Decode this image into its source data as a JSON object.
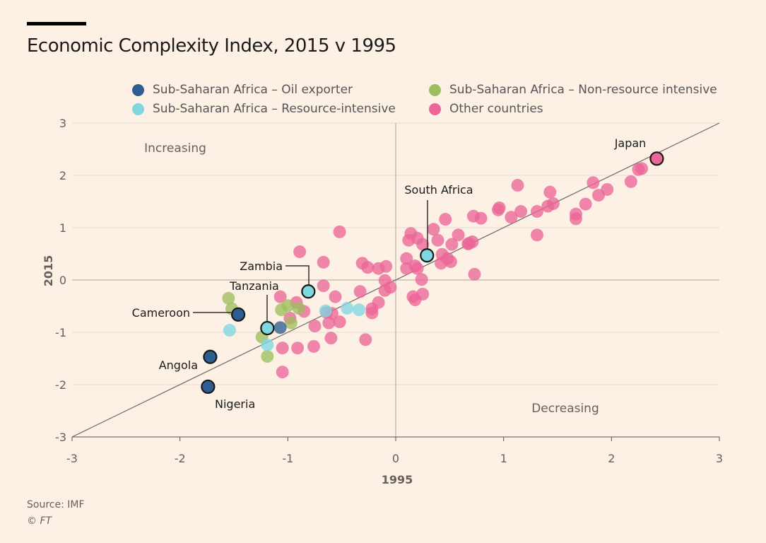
{
  "title": "Economic Complexity Index, 2015 v 1995",
  "source": "Source: IMF",
  "credit": "© FT",
  "colors": {
    "oil": "#2d5e92",
    "resource": "#7fd7e0",
    "nonresource": "#9dbe5e",
    "other": "#ea6797",
    "background": "#fdf1e6"
  },
  "chart_data": {
    "type": "scatter",
    "title": "Economic Complexity Index, 2015 v 1995",
    "xlabel": "1995",
    "ylabel": "2015",
    "xlim": [
      -3,
      3
    ],
    "ylim": [
      -3,
      3
    ],
    "xticks": [
      "-3",
      "-2",
      "-1",
      "0",
      "1",
      "2",
      "3"
    ],
    "yticks": [
      "3",
      "2",
      "1",
      "0",
      "-1",
      "-2",
      "-3"
    ],
    "grid": true,
    "legend_position": "top",
    "annotations": {
      "increasing": "Increasing",
      "decreasing": "Decreasing"
    },
    "series": [
      {
        "key": "oil",
        "name": "Sub-Saharan Africa – Oil exporter",
        "points": [
          [
            -1.07,
            -0.91
          ]
        ]
      },
      {
        "key": "nonresource",
        "name": "Sub-Saharan Africa – Non-resource intensive",
        "points": [
          [
            -1.55,
            -0.35
          ],
          [
            -1.52,
            -0.55
          ],
          [
            -1.24,
            -1.09
          ],
          [
            -1.19,
            -1.46
          ],
          [
            -1.06,
            -0.57
          ],
          [
            -1.0,
            -0.49
          ],
          [
            -0.97,
            -0.82
          ],
          [
            -0.9,
            -0.54
          ]
        ]
      },
      {
        "key": "resource",
        "name": "Sub-Saharan Africa – Resource-intensive",
        "points": [
          [
            -1.54,
            -0.96
          ],
          [
            -1.19,
            -1.24
          ],
          [
            -0.65,
            -0.59
          ],
          [
            -0.45,
            -0.54
          ],
          [
            -0.34,
            -0.57
          ]
        ]
      },
      {
        "key": "other",
        "name": "Other countries",
        "points": [
          [
            2.25,
            2.11
          ],
          [
            2.28,
            2.13
          ],
          [
            2.18,
            1.88
          ],
          [
            1.96,
            1.73
          ],
          [
            1.88,
            1.62
          ],
          [
            1.83,
            1.86
          ],
          [
            1.76,
            1.45
          ],
          [
            1.67,
            1.26
          ],
          [
            1.67,
            1.17
          ],
          [
            1.13,
            1.81
          ],
          [
            1.43,
            1.68
          ],
          [
            1.46,
            1.46
          ],
          [
            1.41,
            1.41
          ],
          [
            1.31,
            0.86
          ],
          [
            1.31,
            1.31
          ],
          [
            1.16,
            1.31
          ],
          [
            1.07,
            1.2
          ],
          [
            0.96,
            1.38
          ],
          [
            0.95,
            1.34
          ],
          [
            0.79,
            1.18
          ],
          [
            0.72,
            1.22
          ],
          [
            0.73,
            0.11
          ],
          [
            0.68,
            0.7
          ],
          [
            0.67,
            0.69
          ],
          [
            0.71,
            0.73
          ],
          [
            0.58,
            0.86
          ],
          [
            0.52,
            0.68
          ],
          [
            0.46,
            1.16
          ],
          [
            0.51,
            0.35
          ],
          [
            0.48,
            0.41
          ],
          [
            0.43,
            0.49
          ],
          [
            0.35,
            0.97
          ],
          [
            0.39,
            0.76
          ],
          [
            0.42,
            0.32
          ],
          [
            0.14,
            0.89
          ],
          [
            0.12,
            0.76
          ],
          [
            0.2,
            0.8
          ],
          [
            0.25,
            0.68
          ],
          [
            0.1,
            0.41
          ],
          [
            0.1,
            0.22
          ],
          [
            0.18,
            0.27
          ],
          [
            0.2,
            0.22
          ],
          [
            0.16,
            -0.32
          ],
          [
            0.18,
            -0.38
          ],
          [
            0.25,
            -0.27
          ],
          [
            0.24,
            0.01
          ],
          [
            -0.09,
            0.26
          ],
          [
            -0.05,
            -0.14
          ],
          [
            -0.1,
            -0.2
          ],
          [
            -0.1,
            -0.01
          ],
          [
            -0.16,
            0.22
          ],
          [
            -0.26,
            0.24
          ],
          [
            -0.31,
            0.32
          ],
          [
            -0.16,
            -0.43
          ],
          [
            -0.22,
            -0.55
          ],
          [
            -0.22,
            -0.63
          ],
          [
            -0.33,
            -0.22
          ],
          [
            -0.28,
            -1.14
          ],
          [
            -0.52,
            0.92
          ],
          [
            -0.56,
            -0.32
          ],
          [
            -0.59,
            -0.64
          ],
          [
            -0.62,
            -0.82
          ],
          [
            -0.6,
            -1.11
          ],
          [
            -0.52,
            -0.8
          ],
          [
            -0.67,
            0.34
          ],
          [
            -0.67,
            -0.11
          ],
          [
            -0.75,
            -0.88
          ],
          [
            -0.85,
            -0.6
          ],
          [
            -0.89,
            0.54
          ],
          [
            -0.92,
            -0.43
          ],
          [
            -0.98,
            -0.73
          ],
          [
            -1.07,
            -0.32
          ],
          [
            -0.91,
            -1.3
          ],
          [
            -0.76,
            -1.27
          ],
          [
            -1.05,
            -1.3
          ],
          [
            -1.05,
            -1.76
          ],
          [
            -0.64,
            -0.62
          ]
        ]
      }
    ],
    "labeled": [
      {
        "name": "Japan",
        "key": "other",
        "x": 2.42,
        "y": 2.32
      },
      {
        "name": "South Africa",
        "key": "resource",
        "x": 0.29,
        "y": 0.47
      },
      {
        "name": "Zambia",
        "key": "resource",
        "x": -0.81,
        "y": -0.22
      },
      {
        "name": "Tanzania",
        "key": "resource",
        "x": -1.19,
        "y": -0.92
      },
      {
        "name": "Cameroon",
        "key": "oil",
        "x": -1.46,
        "y": -0.66
      },
      {
        "name": "Angola",
        "key": "oil",
        "x": -1.72,
        "y": -1.47
      },
      {
        "name": "Nigeria",
        "key": "oil",
        "x": -1.74,
        "y": -2.04
      }
    ]
  }
}
